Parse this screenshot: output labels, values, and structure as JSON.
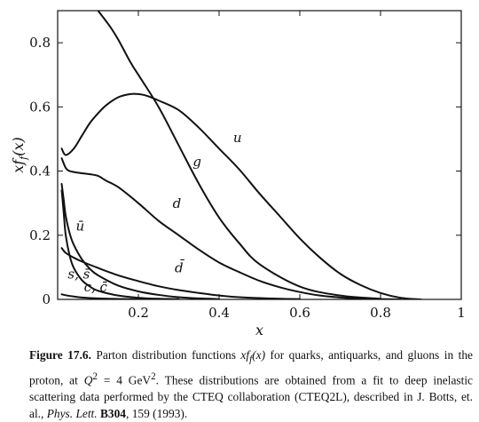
{
  "chart_data": {
    "type": "line",
    "title": "",
    "xlabel": "x",
    "ylabel": "xf_f(x)",
    "xlim": [
      0,
      1
    ],
    "ylim": [
      0,
      0.9
    ],
    "xticks": [
      0.2,
      0.4,
      0.6,
      0.8,
      1
    ],
    "xtick_labels": [
      "0.2",
      "0.4",
      "0.6",
      "0.8",
      "1"
    ],
    "yticks": [
      0,
      0.2,
      0.4,
      0.6,
      0.8
    ],
    "ytick_labels": [
      "0",
      "0.2",
      "0.4",
      "0.6",
      "0.8"
    ],
    "grid": false,
    "series": [
      {
        "name": "u",
        "x": [
          0.01,
          0.02,
          0.04,
          0.06,
          0.08,
          0.1,
          0.12,
          0.15,
          0.18,
          0.2,
          0.22,
          0.25,
          0.3,
          0.35,
          0.4,
          0.45,
          0.5,
          0.55,
          0.6,
          0.65,
          0.7,
          0.75,
          0.8,
          0.85,
          0.9
        ],
        "y": [
          0.47,
          0.45,
          0.47,
          0.51,
          0.55,
          0.58,
          0.605,
          0.63,
          0.64,
          0.64,
          0.635,
          0.62,
          0.59,
          0.535,
          0.47,
          0.405,
          0.33,
          0.26,
          0.19,
          0.13,
          0.08,
          0.045,
          0.02,
          0.005,
          0
        ]
      },
      {
        "name": "d",
        "x": [
          0.01,
          0.02,
          0.03,
          0.05,
          0.08,
          0.1,
          0.12,
          0.15,
          0.2,
          0.25,
          0.3,
          0.35,
          0.4,
          0.45,
          0.5,
          0.55,
          0.6,
          0.65,
          0.7,
          0.75,
          0.8,
          0.85
        ],
        "y": [
          0.44,
          0.41,
          0.4,
          0.395,
          0.39,
          0.385,
          0.37,
          0.35,
          0.3,
          0.245,
          0.2,
          0.155,
          0.115,
          0.085,
          0.058,
          0.038,
          0.023,
          0.012,
          0.006,
          0.002,
          0.001,
          0
        ]
      },
      {
        "name": "g",
        "x": [
          0.1,
          0.13,
          0.15,
          0.18,
          0.2,
          0.25,
          0.3,
          0.35,
          0.4,
          0.45,
          0.5,
          0.6,
          0.7,
          0.8
        ],
        "y": [
          0.9,
          0.85,
          0.81,
          0.74,
          0.7,
          0.6,
          0.48,
          0.36,
          0.255,
          0.175,
          0.11,
          0.04,
          0.012,
          0.002
        ]
      },
      {
        "name": "ū",
        "x": [
          0.01,
          0.015,
          0.02,
          0.03,
          0.04,
          0.06,
          0.08,
          0.1,
          0.15,
          0.2,
          0.25,
          0.3,
          0.35,
          0.4
        ],
        "y": [
          0.36,
          0.31,
          0.26,
          0.205,
          0.17,
          0.125,
          0.095,
          0.075,
          0.043,
          0.025,
          0.014,
          0.007,
          0.003,
          0.001
        ]
      },
      {
        "name": "d̄",
        "x": [
          0.01,
          0.02,
          0.04,
          0.06,
          0.1,
          0.15,
          0.2,
          0.25,
          0.3,
          0.35,
          0.4,
          0.45,
          0.5,
          0.55,
          0.6
        ],
        "y": [
          0.16,
          0.145,
          0.13,
          0.118,
          0.098,
          0.075,
          0.057,
          0.041,
          0.029,
          0.02,
          0.012,
          0.007,
          0.004,
          0.002,
          0.001
        ]
      },
      {
        "name": "s, s̄",
        "x": [
          0.01,
          0.015,
          0.02,
          0.03,
          0.04,
          0.06,
          0.08,
          0.1,
          0.15,
          0.2,
          0.25,
          0.3
        ],
        "y": [
          0.34,
          0.27,
          0.2,
          0.135,
          0.098,
          0.06,
          0.04,
          0.027,
          0.012,
          0.005,
          0.002,
          0.001
        ]
      },
      {
        "name": "c, c̄",
        "x": [
          0.01,
          0.02,
          0.04,
          0.06,
          0.1,
          0.15,
          0.2,
          0.25
        ],
        "y": [
          0.016,
          0.013,
          0.009,
          0.006,
          0.003,
          0.0015,
          0.0006,
          0.0002
        ]
      }
    ],
    "annotations": [
      {
        "text": "u",
        "x": 0.435,
        "y": 0.49
      },
      {
        "text": "g",
        "x": 0.335,
        "y": 0.415
      },
      {
        "text": "d",
        "x": 0.285,
        "y": 0.285
      },
      {
        "text": "ū",
        "x": 0.045,
        "y": 0.215
      },
      {
        "text": "d̄",
        "x": 0.29,
        "y": 0.085
      },
      {
        "text": "s, s̄",
        "x": 0.025,
        "y": 0.065
      },
      {
        "text": "c, c̄",
        "x": 0.065,
        "y": 0.025
      }
    ]
  },
  "caption": {
    "figure_label": "Figure 17.6.",
    "text_1": " Parton distribution functions ",
    "math_1": "xf",
    "math_1_sub": "f",
    "math_1_tail": "(x)",
    "text_2": " for quarks, antiquarks, and gluons in the proton, at ",
    "math_2": "Q",
    "math_2_sup": "2",
    "math_2_tail": " = 4 GeV",
    "math_2_sup2": "2",
    "text_3": ". These distributions are obtained from a fit to deep inelastic scattering data performed by the CTEQ collaboration (CTEQ2L), described in J. Botts, et. al., ",
    "journal": "Phys. Lett.",
    "volume": "B304",
    "text_4": ", 159 (1993)."
  }
}
